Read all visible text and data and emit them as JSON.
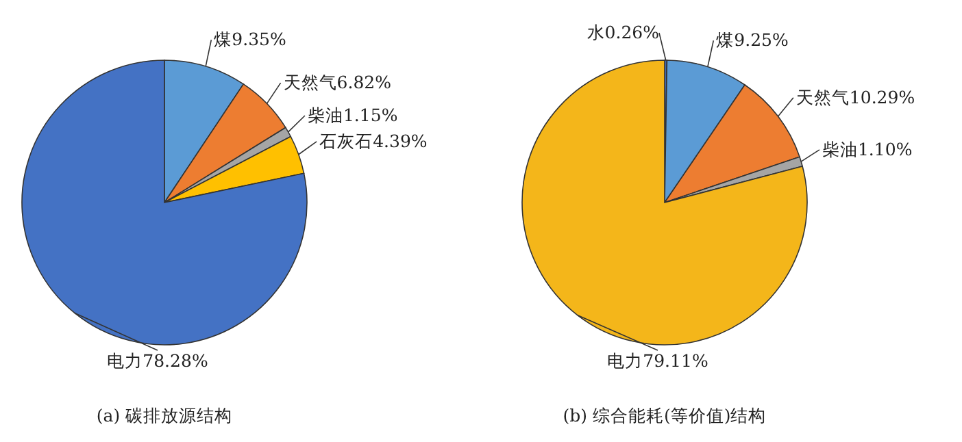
{
  "chart_data": [
    {
      "type": "pie",
      "title": "(a) 碳排放源结构",
      "categories": [
        "煤",
        "天然气",
        "柴油",
        "石灰石",
        "电力"
      ],
      "values": [
        9.35,
        6.82,
        1.15,
        4.39,
        78.28
      ],
      "value_labels": [
        "9.35%",
        "6.82%",
        "1.15%",
        "4.39%",
        "78.28%"
      ],
      "colors": [
        "#5b9bd5",
        "#ed7d31",
        "#a5a5a5",
        "#ffc000",
        "#4472c4"
      ]
    },
    {
      "type": "pie",
      "title": "(b) 综合能耗(等价值)结构",
      "categories": [
        "水",
        "煤",
        "天然气",
        "柴油",
        "电力"
      ],
      "values": [
        0.26,
        9.25,
        10.29,
        1.1,
        79.11
      ],
      "value_labels": [
        "0.26%",
        "9.25%",
        "10.29%",
        "1.10%",
        "79.11%"
      ],
      "colors": [
        "#4472c4",
        "#5b9bd5",
        "#ed7d31",
        "#a5a5a5",
        "#f4b61a"
      ]
    }
  ]
}
